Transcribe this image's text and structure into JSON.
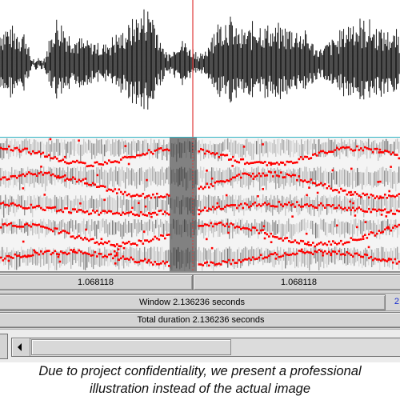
{
  "editor": {
    "cursor_time_left": "1.068118",
    "cursor_time_right": "1.068118",
    "window_label": "Window 2.136236 seconds",
    "window_right_value": "2",
    "total_duration_label": "Total duration 2.136236 seconds"
  },
  "colors": {
    "formant_dots": "#ff0000",
    "cursor_line": "#e03a3a",
    "panel_border": "#2fb4c4",
    "waveform": "#000000",
    "row_background": "#d4d4d4",
    "blue_text": "#1a2fd0"
  },
  "icons": {
    "scroll_left": "left-arrow-icon"
  },
  "caption": {
    "line1": "Due to project confidentiality, we present a professional",
    "line2": "illustration instead of the actual image"
  }
}
